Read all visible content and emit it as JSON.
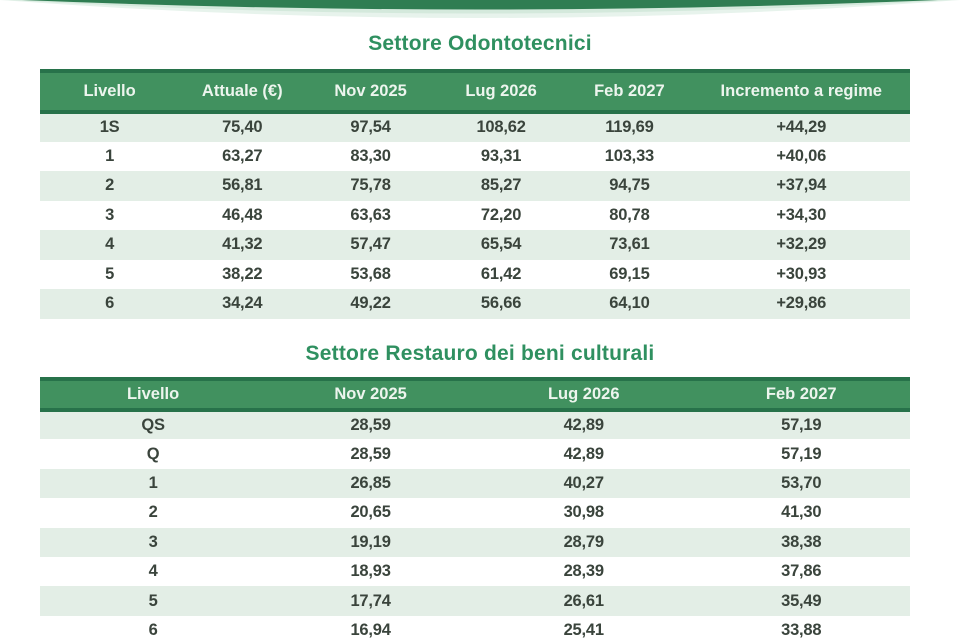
{
  "colors": {
    "title_color": "#2f9060",
    "header_bg": "#41915f",
    "header_border": "#27724a",
    "header_text": "#edf5ee",
    "stripe": "#e3eee6",
    "cell_text": "#3a443c",
    "top_arc": "#2f7d52",
    "top_glow": "#cde6d7"
  },
  "chart_data": [
    {
      "type": "table",
      "title": "Settore Odontotecnici",
      "columns": [
        "Livello",
        "Attuale (€)",
        "Nov 2025",
        "Lug 2026",
        "Feb 2027",
        "Incremento a regime"
      ],
      "rows": [
        [
          "1S",
          "75,40",
          "97,54",
          "108,62",
          "119,69",
          "+44,29"
        ],
        [
          "1",
          "63,27",
          "83,30",
          "93,31",
          "103,33",
          "+40,06"
        ],
        [
          "2",
          "56,81",
          "75,78",
          "85,27",
          "94,75",
          "+37,94"
        ],
        [
          "3",
          "46,48",
          "63,63",
          "72,20",
          "80,78",
          "+34,30"
        ],
        [
          "4",
          "41,32",
          "57,47",
          "65,54",
          "73,61",
          "+32,29"
        ],
        [
          "5",
          "38,22",
          "53,68",
          "61,42",
          "69,15",
          "+30,93"
        ],
        [
          "6",
          "34,24",
          "49,22",
          "56,66",
          "64,10",
          "+29,86"
        ]
      ]
    },
    {
      "type": "table",
      "title": "Settore Restauro dei beni culturali",
      "columns": [
        "Livello",
        "Nov 2025",
        "Lug 2026",
        "Feb 2027"
      ],
      "rows": [
        [
          "QS",
          "28,59",
          "42,89",
          "57,19"
        ],
        [
          "Q",
          "28,59",
          "42,89",
          "57,19"
        ],
        [
          "1",
          "26,85",
          "40,27",
          "53,70"
        ],
        [
          "2",
          "20,65",
          "30,98",
          "41,30"
        ],
        [
          "3",
          "19,19",
          "28,79",
          "38,38"
        ],
        [
          "4",
          "18,93",
          "28,39",
          "37,86"
        ],
        [
          "5",
          "17,74",
          "26,61",
          "35,49"
        ],
        [
          "6",
          "16,94",
          "25,41",
          "33,88"
        ]
      ]
    }
  ]
}
